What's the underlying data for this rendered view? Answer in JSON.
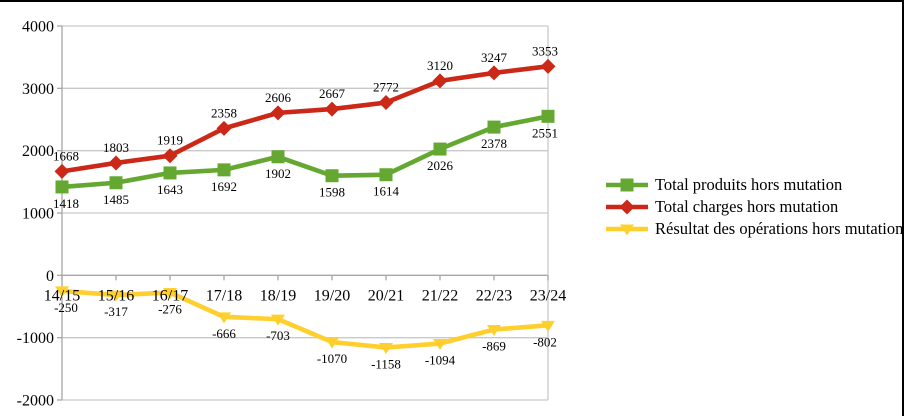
{
  "chart_data": {
    "type": "line",
    "title": "",
    "xlabel": "",
    "ylabel": "",
    "categories": [
      "14/15",
      "15/16",
      "16/17",
      "17/18",
      "18/19",
      "19/20",
      "20/21",
      "21/22",
      "22/23",
      "23/24"
    ],
    "series": [
      {
        "name": "Total produits hors mutation",
        "color": "#64A832",
        "marker": "square",
        "label_position": "below",
        "values": [
          1418,
          1485,
          1643,
          1692,
          1902,
          1598,
          1614,
          2026,
          2378,
          2551
        ]
      },
      {
        "name": "Total charges hors mutation",
        "color": "#CC2818",
        "marker": "diamond",
        "label_position": "above",
        "values": [
          1668,
          1803,
          1919,
          2358,
          2606,
          2667,
          2772,
          3120,
          3247,
          3353
        ]
      },
      {
        "name": "Résultat des opérations hors mutation",
        "color": "#FFD02D",
        "marker": "triangle-down",
        "label_position": "below",
        "values": [
          -250,
          -317,
          -276,
          -666,
          -703,
          -1070,
          -1158,
          -1094,
          -869,
          -802
        ]
      }
    ],
    "ylim": [
      -2000,
      4000
    ],
    "ytick_step": 1000,
    "yticks": [
      "4000",
      "3000",
      "2000",
      "1000",
      "0",
      "-1000",
      "-2000"
    ],
    "grid": true,
    "data_labels": true,
    "legend_position": "right"
  },
  "colors": {
    "gridline": "#C9C9C9",
    "axis": "#A6A6A6",
    "text": "#000000",
    "frame_border": "#000000",
    "background": "#FFFFFF"
  }
}
